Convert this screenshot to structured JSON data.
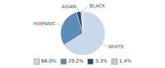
{
  "chart_data": {
    "type": "pie",
    "categories": [
      "WHITE",
      "HISPANIC",
      "ASIAN",
      "BLACK"
    ],
    "values": [
      66.0,
      29.2,
      3.3,
      1.4
    ],
    "value_labels": [
      "66.0%",
      "29.2%",
      "3.3%",
      "1.4%"
    ],
    "colors": [
      "#c9d8e6",
      "#5b8db8",
      "#2c4a6e",
      "#c0cdd8"
    ],
    "legend": "bottom"
  }
}
